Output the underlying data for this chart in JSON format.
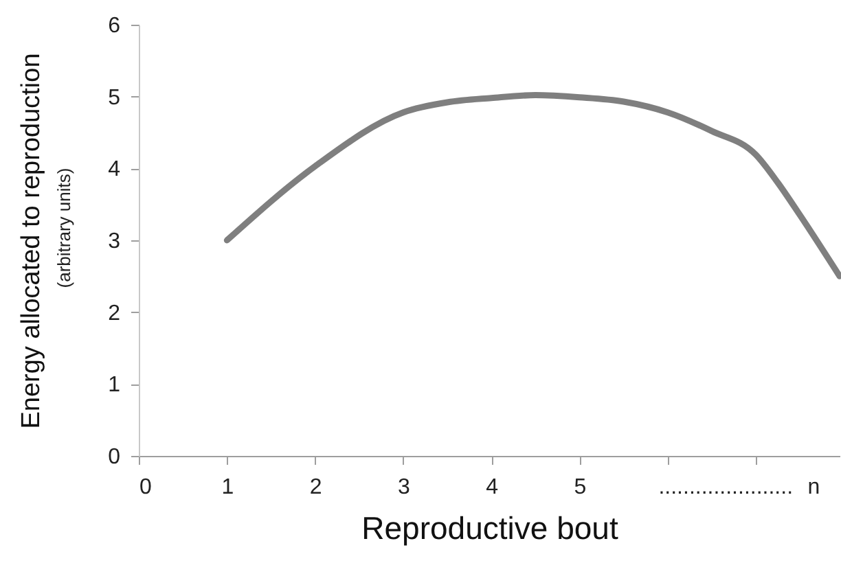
{
  "chart_data": {
    "type": "line",
    "xlabel": "Reproductive bout",
    "ylabel": "Energy allocated to reproduction",
    "annotations": [
      "(arbitrary units)"
    ],
    "series": [
      {
        "color": "#7f7f7f",
        "x": [
          1,
          2,
          3,
          3.5,
          4,
          4.5,
          5,
          5.5,
          6,
          6.5,
          7,
          7.25,
          7.5,
          7.95
        ],
        "values": [
          3,
          4.03,
          4.78,
          4.92,
          4.98,
          5.02,
          4.99,
          4.93,
          4.78,
          4.52,
          4.19,
          3.8,
          3.35,
          2.5
        ]
      }
    ],
    "xlim": [
      0,
      7.95
    ],
    "xticks": [
      0,
      1,
      2,
      3,
      4,
      5,
      {
        "value": 6,
        "label": null
      },
      {
        "value": 7,
        "label": null
      },
      {
        "value": 6.65,
        "label": "......................"
      },
      {
        "value": 7.65,
        "label": "n"
      }
    ],
    "ylim": [
      0,
      6
    ],
    "yticks": [
      0,
      1,
      2,
      3,
      4,
      5,
      6
    ],
    "grid": false,
    "marker": "none",
    "line_style": "solid"
  }
}
